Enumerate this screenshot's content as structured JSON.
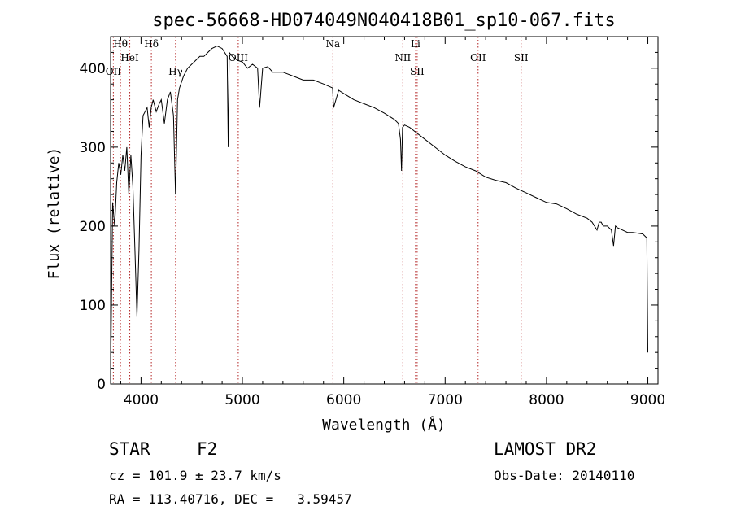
{
  "chart_data": {
    "type": "line",
    "title": "spec-56668-HD074049N040418B01_sp10-067.fits",
    "xlabel": "Wavelength (Å)",
    "ylabel": "Flux (relative)",
    "xlim": [
      3700,
      9100
    ],
    "ylim": [
      0,
      440
    ],
    "xticks": [
      4000,
      5000,
      6000,
      7000,
      8000,
      9000
    ],
    "yticks": [
      0,
      100,
      200,
      300,
      400
    ],
    "grid": false,
    "line_color": "#000000",
    "marker_color": "#b22222",
    "series": [
      {
        "x": [
          3700,
          3720,
          3740,
          3760,
          3780,
          3800,
          3820,
          3840,
          3860,
          3880,
          3900,
          3920,
          3940,
          3960,
          3980,
          4000,
          4020,
          4040,
          4060,
          4080,
          4100,
          4120,
          4150,
          4180,
          4200,
          4230,
          4260,
          4290,
          4320,
          4340,
          4360,
          4380,
          4420,
          4460,
          4500,
          4540,
          4580,
          4620,
          4660,
          4700,
          4750,
          4800,
          4850,
          4860,
          4870,
          4900,
          4950,
          5000,
          5050,
          5100,
          5150,
          5170,
          5200,
          5250,
          5300,
          5400,
          5500,
          5600,
          5700,
          5800,
          5890,
          5900,
          5950,
          6000,
          6100,
          6200,
          6300,
          6400,
          6500,
          6540,
          6560,
          6570,
          6580,
          6600,
          6650,
          6700,
          6800,
          6900,
          7000,
          7100,
          7200,
          7300,
          7400,
          7500,
          7600,
          7700,
          7800,
          7900,
          8000,
          8100,
          8200,
          8300,
          8400,
          8450,
          8498,
          8520,
          8540,
          8560,
          8600,
          8640,
          8662,
          8680,
          8700,
          8750,
          8800,
          8850,
          8900,
          8950,
          8990,
          9000
        ],
        "y": [
          5,
          230,
          200,
          255,
          280,
          265,
          290,
          270,
          300,
          240,
          290,
          250,
          170,
          85,
          170,
          290,
          340,
          345,
          350,
          325,
          350,
          360,
          345,
          355,
          360,
          330,
          360,
          370,
          340,
          240,
          360,
          375,
          390,
          400,
          405,
          410,
          415,
          415,
          420,
          425,
          428,
          425,
          415,
          300,
          420,
          415,
          410,
          408,
          400,
          405,
          400,
          350,
          400,
          402,
          395,
          395,
          390,
          385,
          385,
          380,
          375,
          350,
          372,
          368,
          360,
          355,
          350,
          343,
          335,
          330,
          310,
          270,
          325,
          328,
          325,
          320,
          310,
          300,
          290,
          282,
          275,
          270,
          262,
          258,
          255,
          248,
          242,
          236,
          230,
          228,
          222,
          215,
          210,
          205,
          195,
          205,
          205,
          200,
          200,
          195,
          175,
          200,
          198,
          195,
          192,
          192,
          191,
          190,
          185,
          40
        ]
      }
    ],
    "line_markers": [
      {
        "label": "Hθ",
        "x": 3797
      },
      {
        "label": "OII",
        "x": 3727
      },
      {
        "label": "HeI",
        "x": 3889
      },
      {
        "label": "Hδ",
        "x": 4102
      },
      {
        "label": "Hγ",
        "x": 4341
      },
      {
        "label": "OIII",
        "x": 4959
      },
      {
        "label": "Na",
        "x": 5893
      },
      {
        "label": "NII",
        "x": 6583
      },
      {
        "label": "SII",
        "x": 6724
      },
      {
        "label": "Li",
        "x": 6708
      },
      {
        "label": "OII",
        "x": 7325
      },
      {
        "label": "SII",
        "x": 7750
      }
    ]
  },
  "info": {
    "object_type": "STAR",
    "subclass": "F2",
    "survey": "LAMOST DR2",
    "redshift_line": "cz = 101.9 ± 23.7 km/s",
    "obs_date_line": "Obs-Date: 20140110",
    "coord_line": "RA = 113.40716, DEC =   3.59457"
  }
}
